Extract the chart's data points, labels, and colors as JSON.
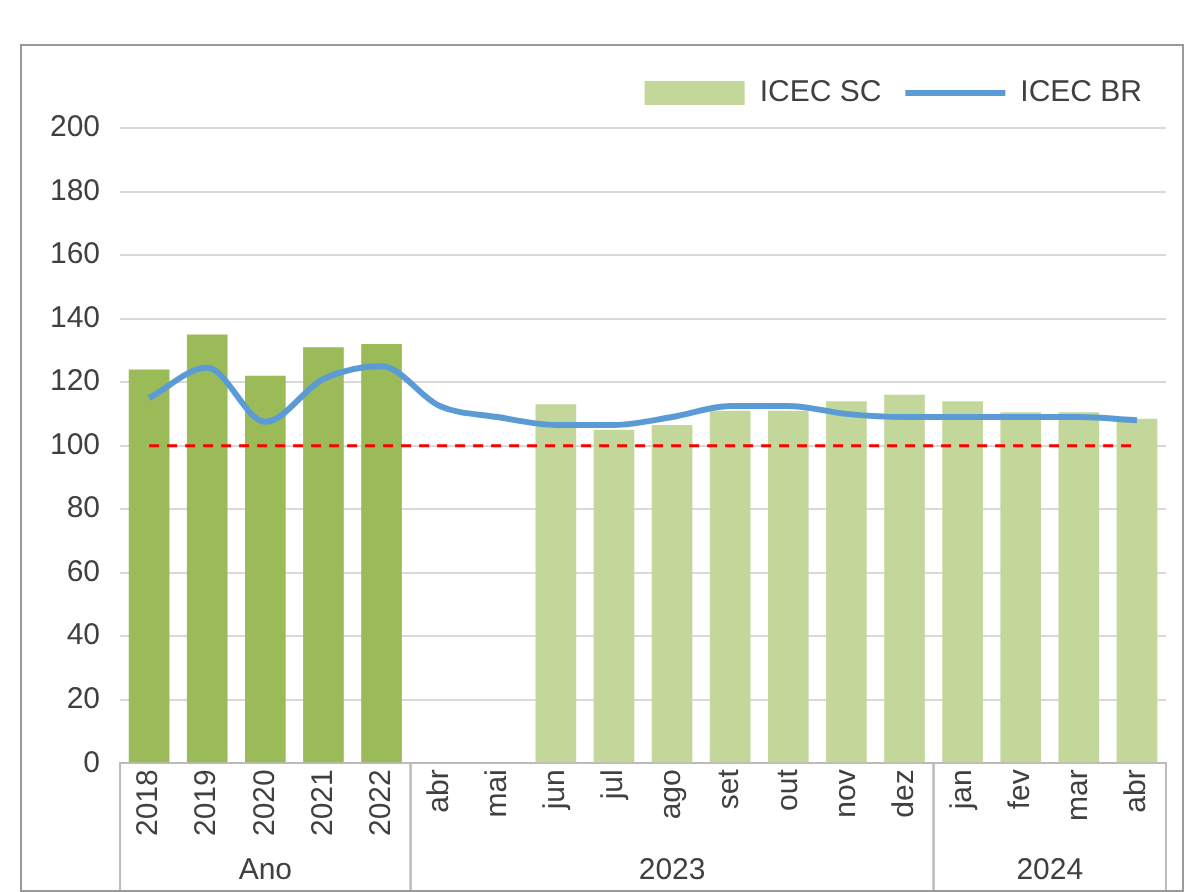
{
  "chart_data": {
    "type": "bar",
    "categories": [
      "2018",
      "2019",
      "2020",
      "2021",
      "2022",
      "abr",
      "mai",
      "jun",
      "jul",
      "ago",
      "set",
      "out",
      "nov",
      "dez",
      "jan",
      "fev",
      "mar",
      "abr"
    ],
    "series": [
      {
        "name": "ICEC SC",
        "color": "#c4d79b",
        "colors": [
          "#9bbb59",
          "#9bbb59",
          "#9bbb59",
          "#9bbb59",
          "#9bbb59",
          null,
          null,
          "#c4d79b",
          "#c4d79b",
          "#c4d79b",
          "#c4d79b",
          "#c4d79b",
          "#c4d79b",
          "#c4d79b",
          "#c4d79b",
          "#c4d79b",
          "#c4d79b",
          "#c4d79b"
        ],
        "values": [
          124,
          135,
          122,
          131,
          132,
          null,
          null,
          113,
          105,
          106.5,
          111,
          111,
          114,
          116,
          114,
          110.5,
          110.5,
          108.5
        ]
      },
      {
        "name": "ICEC BR",
        "type": "line",
        "color": "#5b9bd5",
        "values": [
          115,
          124.5,
          107.5,
          121,
          125,
          112.5,
          109,
          106.5,
          106.5,
          109,
          112.5,
          112.5,
          110,
          109,
          109,
          109,
          109,
          108
        ]
      }
    ],
    "ylim": [
      0,
      200
    ],
    "yticks": [
      0,
      20,
      40,
      60,
      80,
      100,
      120,
      140,
      160,
      180,
      200
    ],
    "grid": "y",
    "legend": "top right",
    "marker": "none",
    "ref_lines": [
      {
        "axis": "y",
        "value": 100,
        "color": "#ff0000",
        "line_style": "dashed"
      }
    ],
    "annotations": [
      "Ano",
      "2023",
      "2024"
    ]
  }
}
